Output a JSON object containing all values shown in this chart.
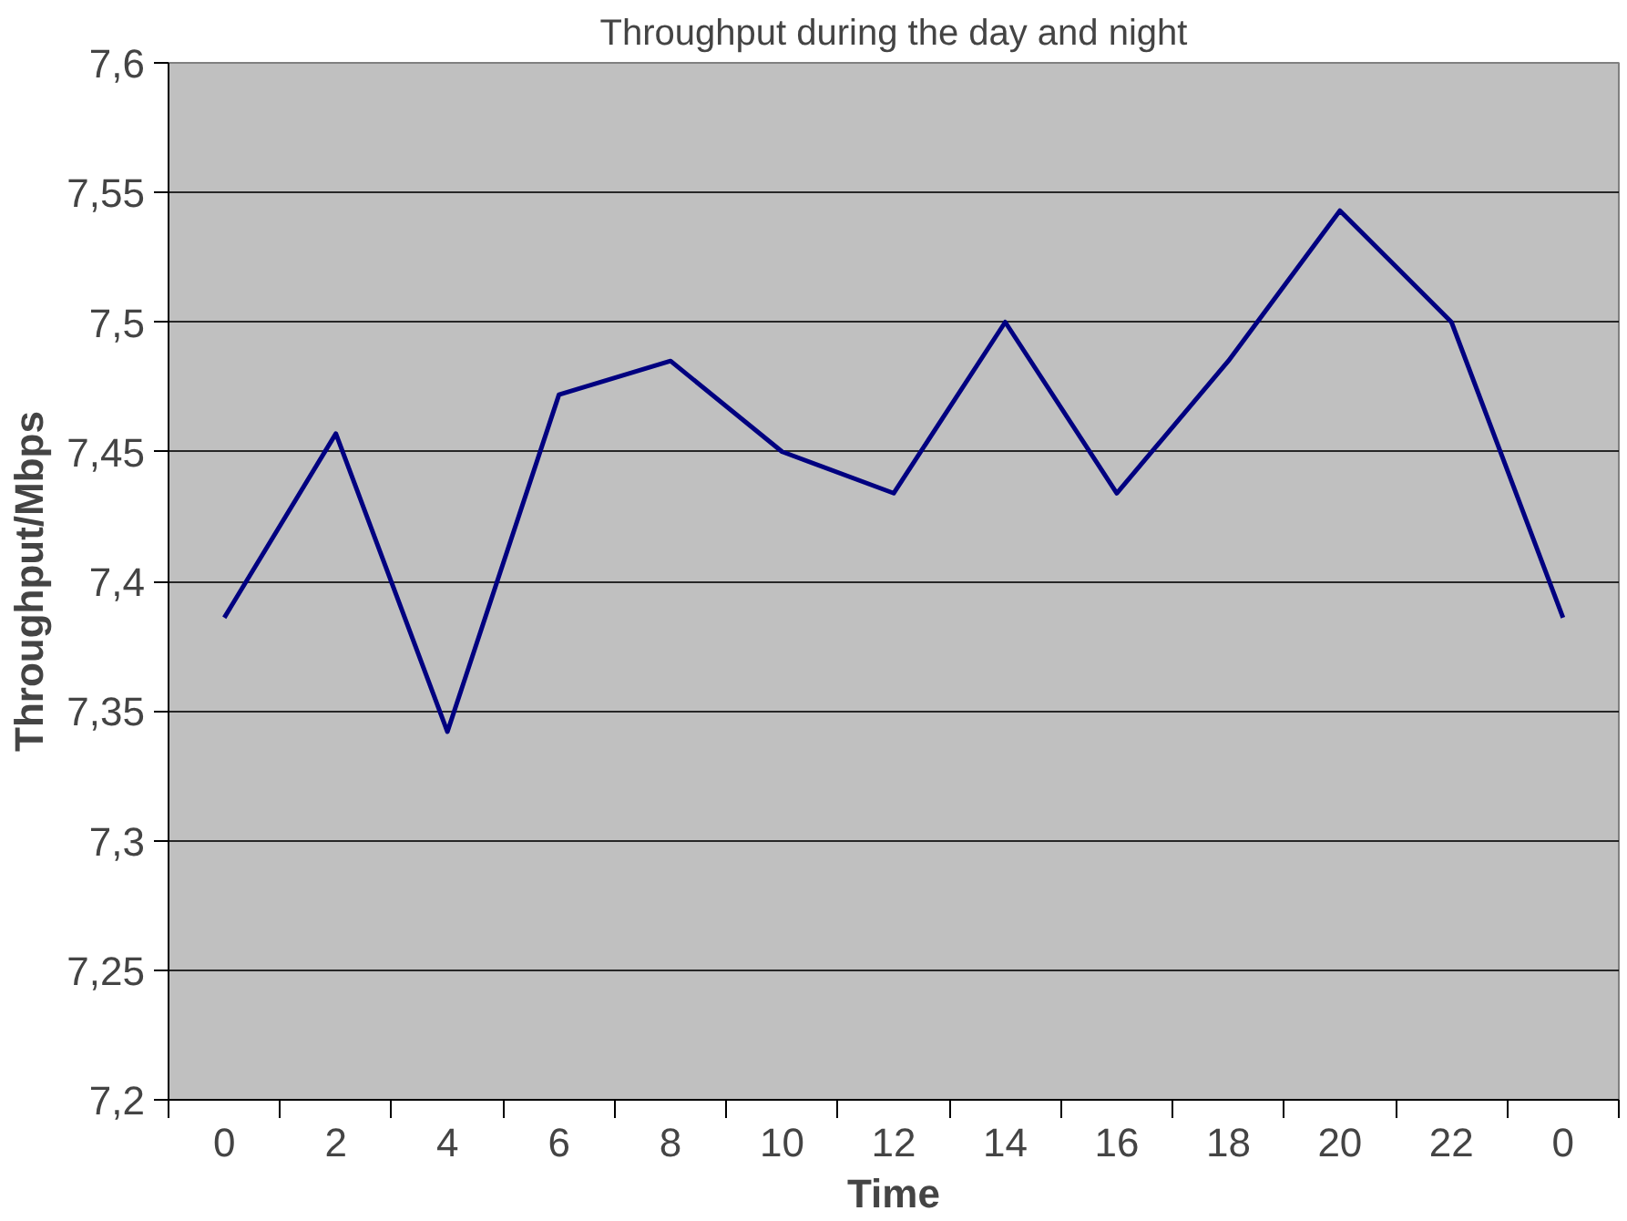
{
  "chart_data": {
    "type": "line",
    "title": "Throughput during the day and night",
    "xlabel": "Time",
    "ylabel": "Throughput/Mbps",
    "categories": [
      "0",
      "2",
      "4",
      "6",
      "8",
      "10",
      "12",
      "14",
      "16",
      "18",
      "20",
      "22",
      "0"
    ],
    "series": [
      {
        "color": "#000080",
        "values": [
          7.386,
          7.457,
          7.342,
          7.472,
          7.485,
          7.45,
          7.434,
          7.5,
          7.434,
          7.485,
          7.543,
          7.5,
          7.386
        ]
      }
    ],
    "ylim": [
      7.2,
      7.6
    ],
    "yticks": [
      {
        "value": 7.2,
        "label": "7,2"
      },
      {
        "value": 7.25,
        "label": "7,25"
      },
      {
        "value": 7.3,
        "label": "7,3"
      },
      {
        "value": 7.35,
        "label": "7,35"
      },
      {
        "value": 7.4,
        "label": "7,4"
      },
      {
        "value": 7.45,
        "label": "7,45"
      },
      {
        "value": 7.5,
        "label": "7,5"
      },
      {
        "value": 7.55,
        "label": "7,55"
      },
      {
        "value": 7.6,
        "label": "7,6"
      }
    ],
    "grid": "y",
    "marker": "none",
    "line_style": "solid"
  }
}
